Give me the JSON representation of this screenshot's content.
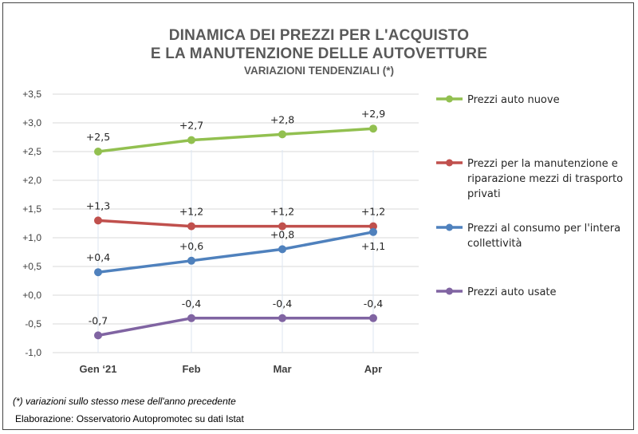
{
  "title_line1": "DINAMICA DEI PREZZI PER L'ACQUISTO",
  "title_line2": "E LA MANUTENZIONE DELLE AUTOVETTURE",
  "subtitle": "VARIAZIONI TENDENZIALI (*)",
  "footnote": "(*) variazioni sullo stesso mese dell'anno precedente",
  "source": "Elaborazione: Osservatorio Autopromotec su dati Istat",
  "chart_data": {
    "type": "line",
    "categories": [
      "Gen ‘21",
      "Feb",
      "Mar",
      "Apr"
    ],
    "ylim": [
      -1.0,
      3.5
    ],
    "yticks": [
      -1.0,
      -0.5,
      0.0,
      0.5,
      1.0,
      1.5,
      2.0,
      2.5,
      3.0,
      3.5
    ],
    "ytick_labels": [
      "-1,0",
      "-0,5",
      "+0,0",
      "+0,5",
      "+1,0",
      "+1,5",
      "+2,0",
      "+2,5",
      "+3,0",
      "+3,5"
    ],
    "grid": true,
    "legend_position": "right",
    "series": [
      {
        "name": "Prezzi auto nuove",
        "color": "#92c050",
        "values": [
          2.5,
          2.7,
          2.8,
          2.9
        ],
        "labels": [
          "+2,5",
          "+2,7",
          "+2,8",
          "+2,9"
        ],
        "label_pos": [
          "above",
          "above",
          "above",
          "above"
        ]
      },
      {
        "name": "Prezzi per la manutenzione e riparazione mezzi di trasporto privati",
        "legend_lines": [
          "Prezzi per la manutenzione e",
          "riparazione mezzi di trasporto",
          "privati"
        ],
        "color": "#c0504d",
        "values": [
          1.3,
          1.2,
          1.2,
          1.2
        ],
        "labels": [
          "+1,3",
          "+1,2",
          "+1,2",
          "+1,2"
        ],
        "label_pos": [
          "above",
          "above",
          "above",
          "above"
        ]
      },
      {
        "name": "Prezzi al consumo per l'intera collettività",
        "legend_lines": [
          "Prezzi al consumo per l'intera",
          "collettività"
        ],
        "color": "#4f81bd",
        "values": [
          0.4,
          0.6,
          0.8,
          1.1
        ],
        "labels": [
          "+0,4",
          "+0,6",
          "+0,8",
          "+1,1"
        ],
        "label_pos": [
          "above",
          "above",
          "above",
          "below"
        ]
      },
      {
        "name": "Prezzi auto usate",
        "color": "#8064a2",
        "values": [
          -0.7,
          -0.4,
          -0.4,
          -0.4
        ],
        "labels": [
          "-0,7",
          "-0,4",
          "-0,4",
          "-0,4"
        ],
        "label_pos": [
          "above",
          "above",
          "above",
          "above"
        ]
      }
    ]
  }
}
